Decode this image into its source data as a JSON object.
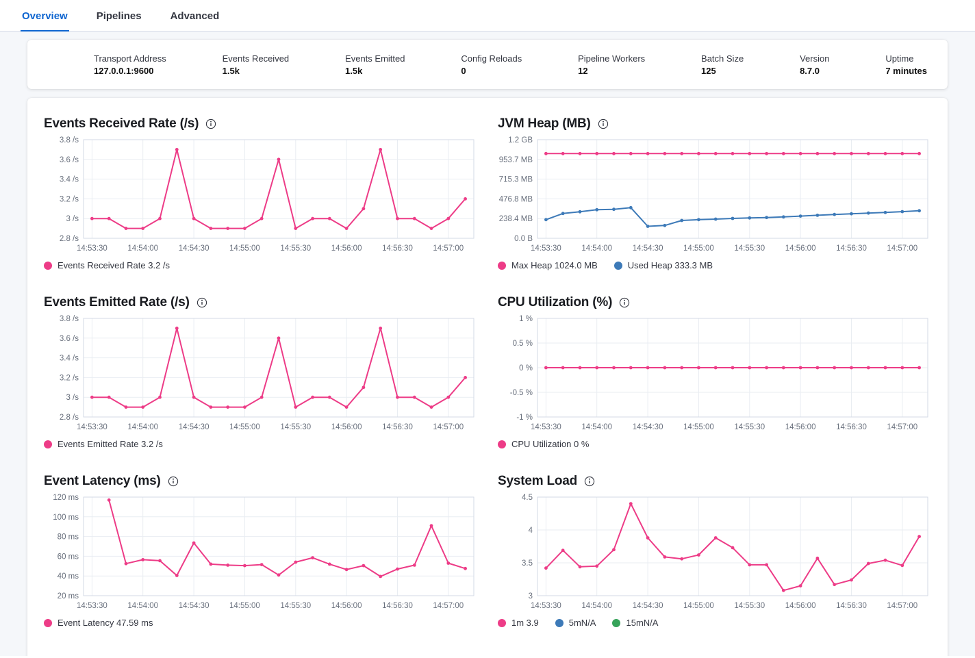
{
  "tabs": {
    "items": [
      {
        "label": "Overview",
        "active": true
      },
      {
        "label": "Pipelines",
        "active": false
      },
      {
        "label": "Advanced",
        "active": false
      }
    ]
  },
  "summary": {
    "items": [
      {
        "label": "Transport Address",
        "value": "127.0.0.1:9600"
      },
      {
        "label": "Events Received",
        "value": "1.5k"
      },
      {
        "label": "Events Emitted",
        "value": "1.5k"
      },
      {
        "label": "Config Reloads",
        "value": "0"
      },
      {
        "label": "Pipeline Workers",
        "value": "12"
      },
      {
        "label": "Batch Size",
        "value": "125"
      },
      {
        "label": "Version",
        "value": "8.7.0"
      },
      {
        "label": "Uptime",
        "value": "7 minutes"
      }
    ]
  },
  "colors": {
    "accent_blue": "#0E65D0",
    "series_pink": "#ED3C87",
    "series_blue": "#3D7AB8",
    "series_green": "#36A359"
  },
  "chart_data": [
    {
      "type": "line",
      "title": "Events Received Rate (/s)",
      "ylabel": "/s",
      "y_min": 2.8,
      "y_max": 3.8,
      "y_ticks": [
        {
          "value": 3.8,
          "label": "3.8 /s"
        },
        {
          "value": 3.6,
          "label": "3.6 /s"
        },
        {
          "value": 3.4,
          "label": "3.4 /s"
        },
        {
          "value": 3.2,
          "label": "3.2 /s"
        },
        {
          "value": 3,
          "label": "3 /s"
        },
        {
          "value": 2.8,
          "label": "2.8 /s"
        }
      ],
      "x_domain": [
        "14:53:25",
        "14:57:15"
      ],
      "x_ticks": [
        "14:53:30",
        "14:54:00",
        "14:54:30",
        "14:55:00",
        "14:55:30",
        "14:56:00",
        "14:56:30",
        "14:57:00"
      ],
      "x": [
        "14:53:30",
        "14:53:40",
        "14:53:50",
        "14:54:00",
        "14:54:10",
        "14:54:20",
        "14:54:30",
        "14:54:40",
        "14:54:50",
        "14:55:00",
        "14:55:10",
        "14:55:20",
        "14:55:30",
        "14:55:40",
        "14:55:50",
        "14:56:00",
        "14:56:10",
        "14:56:20",
        "14:56:30",
        "14:56:40",
        "14:56:50",
        "14:57:00",
        "14:57:10"
      ],
      "series": [
        {
          "name": "Events Received Rate",
          "color": "#ED3C87",
          "values": [
            3,
            3,
            2.9,
            2.9,
            3,
            3.7,
            3,
            2.9,
            2.9,
            2.9,
            3,
            3.6,
            2.9,
            3,
            3,
            2.9,
            3.1,
            3.7,
            3,
            3,
            2.9,
            3,
            3.2
          ]
        }
      ],
      "legend": [
        {
          "color": "#ED3C87",
          "text": "Events Received Rate 3.2 /s"
        }
      ]
    },
    {
      "type": "line",
      "title": "JVM Heap (MB)",
      "ylabel": "MB",
      "y_min": 0,
      "y_max": 1192.1,
      "y_ticks": [
        {
          "value": 1192.1,
          "label": "1.2 GB"
        },
        {
          "value": 953.7,
          "label": "953.7 MB"
        },
        {
          "value": 715.3,
          "label": "715.3 MB"
        },
        {
          "value": 476.8,
          "label": "476.8 MB"
        },
        {
          "value": 238.4,
          "label": "238.4 MB"
        },
        {
          "value": 0,
          "label": "0.0 B"
        }
      ],
      "x_domain": [
        "14:53:25",
        "14:57:15"
      ],
      "x_ticks": [
        "14:53:30",
        "14:54:00",
        "14:54:30",
        "14:55:00",
        "14:55:30",
        "14:56:00",
        "14:56:30",
        "14:57:00"
      ],
      "x": [
        "14:53:30",
        "14:53:40",
        "14:53:50",
        "14:54:00",
        "14:54:10",
        "14:54:20",
        "14:54:30",
        "14:54:40",
        "14:54:50",
        "14:55:00",
        "14:55:10",
        "14:55:20",
        "14:55:30",
        "14:55:40",
        "14:55:50",
        "14:56:00",
        "14:56:10",
        "14:56:20",
        "14:56:30",
        "14:56:40",
        "14:56:50",
        "14:57:00",
        "14:57:10"
      ],
      "series": [
        {
          "name": "Max Heap",
          "color": "#ED3C87",
          "values": [
            1024,
            1024,
            1024,
            1024,
            1024,
            1024,
            1024,
            1024,
            1024,
            1024,
            1024,
            1024,
            1024,
            1024,
            1024,
            1024,
            1024,
            1024,
            1024,
            1024,
            1024,
            1024,
            1024
          ]
        },
        {
          "name": "Used Heap",
          "color": "#3D7AB8",
          "values": [
            225,
            300,
            320,
            345,
            350,
            370,
            145,
            155,
            215,
            225,
            232,
            240,
            246,
            251,
            258,
            268,
            278,
            288,
            296,
            305,
            312,
            322,
            333
          ]
        }
      ],
      "legend": [
        {
          "color": "#ED3C87",
          "text": "Max Heap 1024.0 MB"
        },
        {
          "color": "#3D7AB8",
          "text": "Used Heap 333.3 MB"
        }
      ]
    },
    {
      "type": "line",
      "title": "Events Emitted Rate (/s)",
      "ylabel": "/s",
      "y_min": 2.8,
      "y_max": 3.8,
      "y_ticks": [
        {
          "value": 3.8,
          "label": "3.8 /s"
        },
        {
          "value": 3.6,
          "label": "3.6 /s"
        },
        {
          "value": 3.4,
          "label": "3.4 /s"
        },
        {
          "value": 3.2,
          "label": "3.2 /s"
        },
        {
          "value": 3,
          "label": "3 /s"
        },
        {
          "value": 2.8,
          "label": "2.8 /s"
        }
      ],
      "x_domain": [
        "14:53:25",
        "14:57:15"
      ],
      "x_ticks": [
        "14:53:30",
        "14:54:00",
        "14:54:30",
        "14:55:00",
        "14:55:30",
        "14:56:00",
        "14:56:30",
        "14:57:00"
      ],
      "x": [
        "14:53:30",
        "14:53:40",
        "14:53:50",
        "14:54:00",
        "14:54:10",
        "14:54:20",
        "14:54:30",
        "14:54:40",
        "14:54:50",
        "14:55:00",
        "14:55:10",
        "14:55:20",
        "14:55:30",
        "14:55:40",
        "14:55:50",
        "14:56:00",
        "14:56:10",
        "14:56:20",
        "14:56:30",
        "14:56:40",
        "14:56:50",
        "14:57:00",
        "14:57:10"
      ],
      "series": [
        {
          "name": "Events Emitted Rate",
          "color": "#ED3C87",
          "values": [
            3,
            3,
            2.9,
            2.9,
            3,
            3.7,
            3,
            2.9,
            2.9,
            2.9,
            3,
            3.6,
            2.9,
            3,
            3,
            2.9,
            3.1,
            3.7,
            3,
            3,
            2.9,
            3,
            3.2
          ]
        }
      ],
      "legend": [
        {
          "color": "#ED3C87",
          "text": "Events Emitted Rate 3.2 /s"
        }
      ]
    },
    {
      "type": "line",
      "title": "CPU Utilization (%)",
      "ylabel": "%",
      "y_min": -1,
      "y_max": 1,
      "y_ticks": [
        {
          "value": 1,
          "label": "1 %"
        },
        {
          "value": 0.5,
          "label": "0.5 %"
        },
        {
          "value": 0,
          "label": "0 %"
        },
        {
          "value": -0.5,
          "label": "-0.5 %"
        },
        {
          "value": -1,
          "label": "-1 %"
        }
      ],
      "x_domain": [
        "14:53:25",
        "14:57:15"
      ],
      "x_ticks": [
        "14:53:30",
        "14:54:00",
        "14:54:30",
        "14:55:00",
        "14:55:30",
        "14:56:00",
        "14:56:30",
        "14:57:00"
      ],
      "x": [
        "14:53:30",
        "14:53:40",
        "14:53:50",
        "14:54:00",
        "14:54:10",
        "14:54:20",
        "14:54:30",
        "14:54:40",
        "14:54:50",
        "14:55:00",
        "14:55:10",
        "14:55:20",
        "14:55:30",
        "14:55:40",
        "14:55:50",
        "14:56:00",
        "14:56:10",
        "14:56:20",
        "14:56:30",
        "14:56:40",
        "14:56:50",
        "14:57:00",
        "14:57:10"
      ],
      "series": [
        {
          "name": "CPU Utilization",
          "color": "#ED3C87",
          "values": [
            0,
            0,
            0,
            0,
            0,
            0,
            0,
            0,
            0,
            0,
            0,
            0,
            0,
            0,
            0,
            0,
            0,
            0,
            0,
            0,
            0,
            0,
            0
          ]
        }
      ],
      "legend": [
        {
          "color": "#ED3C87",
          "text": "CPU Utilization 0 %"
        }
      ]
    },
    {
      "type": "line",
      "title": "Event Latency (ms)",
      "ylabel": "ms",
      "y_min": 20,
      "y_max": 120,
      "y_ticks": [
        {
          "value": 120,
          "label": "120 ms"
        },
        {
          "value": 100,
          "label": "100 ms"
        },
        {
          "value": 80,
          "label": "80 ms"
        },
        {
          "value": 60,
          "label": "60 ms"
        },
        {
          "value": 40,
          "label": "40 ms"
        },
        {
          "value": 20,
          "label": "20 ms"
        }
      ],
      "x_domain": [
        "14:53:25",
        "14:57:15"
      ],
      "x_ticks": [
        "14:53:30",
        "14:54:00",
        "14:54:30",
        "14:55:00",
        "14:55:30",
        "14:56:00",
        "14:56:30",
        "14:57:00"
      ],
      "x": [
        "14:53:40",
        "14:53:50",
        "14:54:00",
        "14:54:10",
        "14:54:20",
        "14:54:30",
        "14:54:40",
        "14:54:50",
        "14:55:00",
        "14:55:10",
        "14:55:20",
        "14:55:30",
        "14:55:40",
        "14:55:50",
        "14:56:00",
        "14:56:10",
        "14:56:20",
        "14:56:30",
        "14:56:40",
        "14:56:50",
        "14:57:00",
        "14:57:10"
      ],
      "series": [
        {
          "name": "Event Latency",
          "color": "#ED3C87",
          "values": [
            117,
            52.5,
            56.5,
            55.5,
            40.5,
            73.5,
            52,
            51,
            50.5,
            51.5,
            41,
            54,
            58.5,
            52,
            46.5,
            50.5,
            39.5,
            47,
            51,
            91,
            53,
            47.59
          ]
        }
      ],
      "legend": [
        {
          "color": "#ED3C87",
          "text": "Event Latency 47.59 ms"
        }
      ]
    },
    {
      "type": "line",
      "title": "System Load",
      "ylabel": "",
      "y_min": 3,
      "y_max": 4.5,
      "y_ticks": [
        {
          "value": 4.5,
          "label": "4.5"
        },
        {
          "value": 4,
          "label": "4"
        },
        {
          "value": 3.5,
          "label": "3.5"
        },
        {
          "value": 3,
          "label": "3"
        }
      ],
      "x_domain": [
        "14:53:25",
        "14:57:15"
      ],
      "x_ticks": [
        "14:53:30",
        "14:54:00",
        "14:54:30",
        "14:55:00",
        "14:55:30",
        "14:56:00",
        "14:56:30",
        "14:57:00"
      ],
      "x": [
        "14:53:30",
        "14:53:40",
        "14:53:50",
        "14:54:00",
        "14:54:10",
        "14:54:20",
        "14:54:30",
        "14:54:40",
        "14:54:50",
        "14:55:00",
        "14:55:10",
        "14:55:20",
        "14:55:30",
        "14:55:40",
        "14:55:50",
        "14:56:00",
        "14:56:10",
        "14:56:20",
        "14:56:30",
        "14:56:40",
        "14:56:50",
        "14:57:00",
        "14:57:10"
      ],
      "series": [
        {
          "name": "1m",
          "color": "#ED3C87",
          "values": [
            3.42,
            3.69,
            3.44,
            3.45,
            3.7,
            4.4,
            3.88,
            3.59,
            3.56,
            3.62,
            3.88,
            3.73,
            3.47,
            3.47,
            3.08,
            3.15,
            3.57,
            3.17,
            3.24,
            3.49,
            3.54,
            3.46,
            3.9
          ]
        }
      ],
      "legend": [
        {
          "color": "#ED3C87",
          "text": "1m 3.9"
        },
        {
          "color": "#3D7AB8",
          "text": "5mN/A"
        },
        {
          "color": "#36A359",
          "text": "15mN/A"
        }
      ]
    }
  ]
}
